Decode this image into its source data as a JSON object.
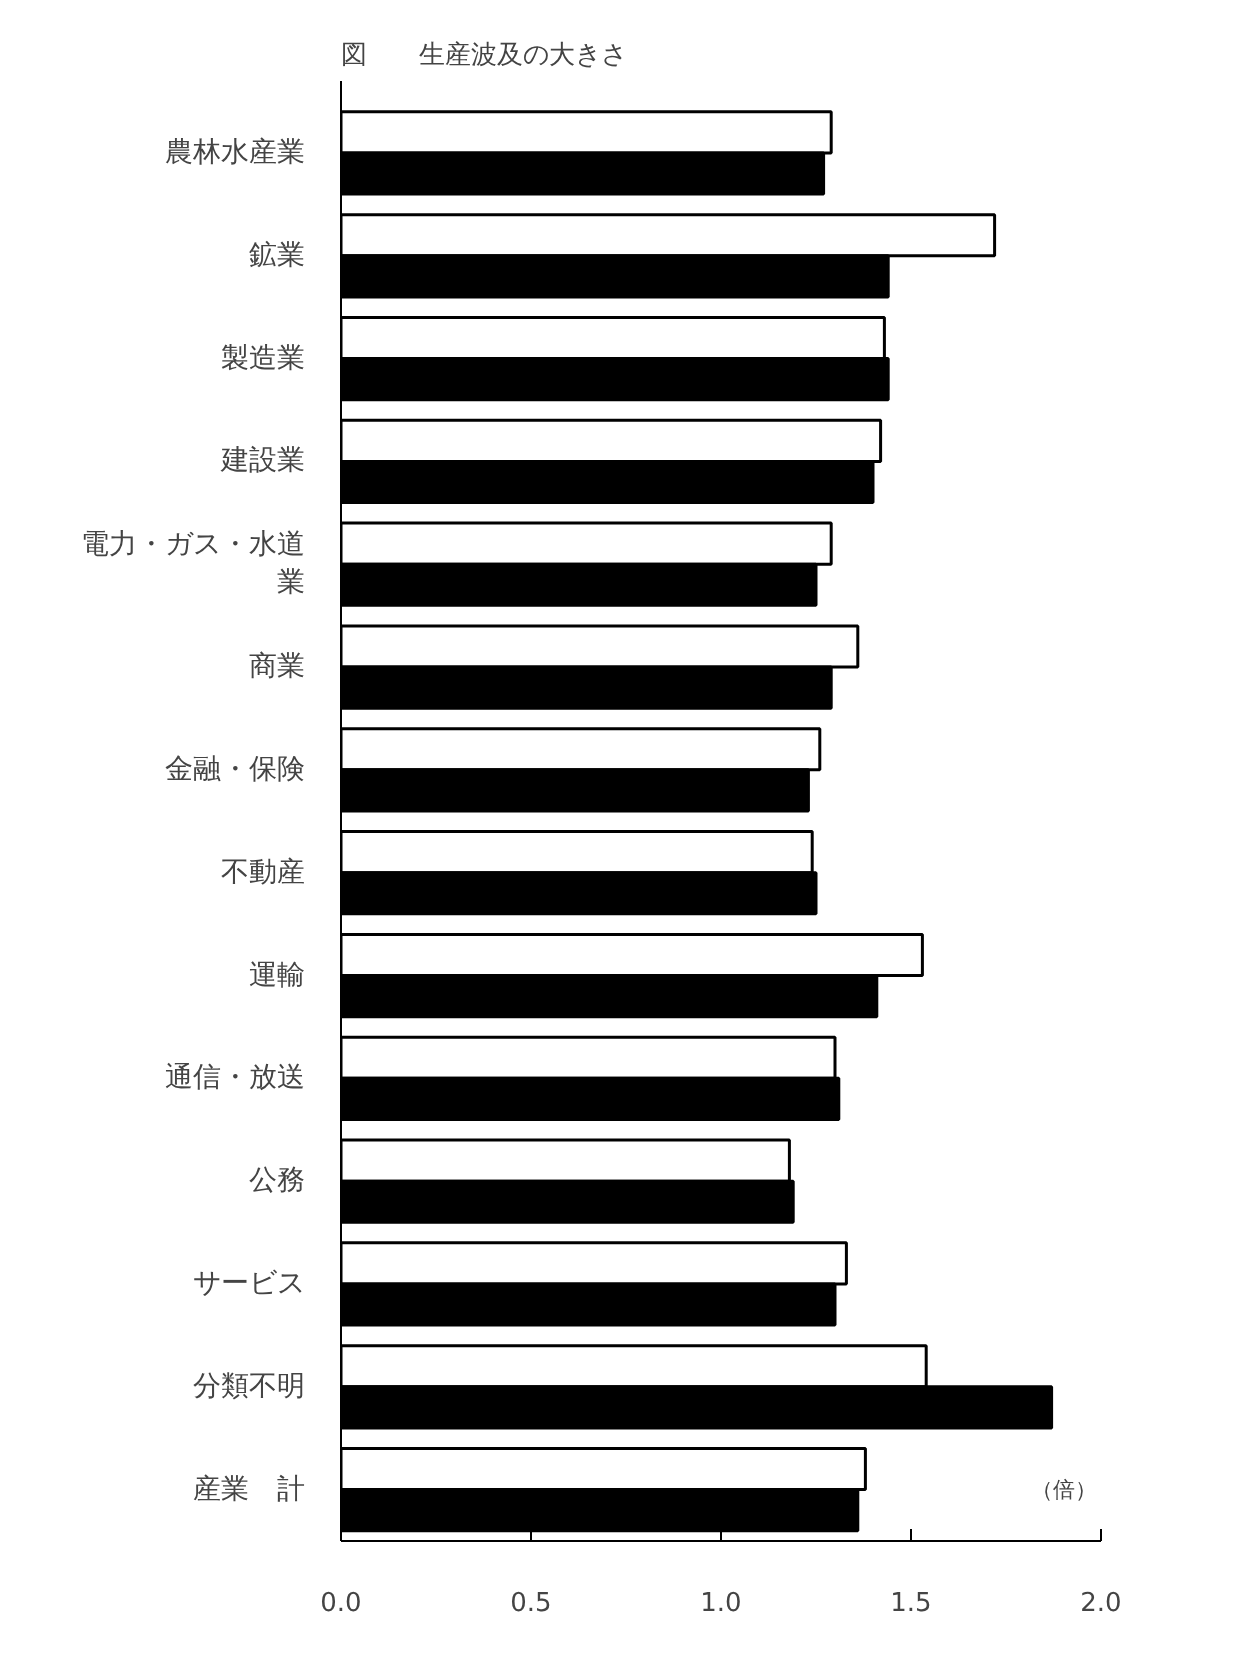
{
  "chart_data": {
    "type": "bar",
    "orientation": "horizontal",
    "title": "図　　生産波及の大きさ",
    "categories": [
      "農林水産業",
      "鉱業",
      "製造業",
      "建設業",
      "電力・ガス・水道業",
      "商業",
      "金融・保険",
      "不動産",
      "運輸",
      "通信・放送",
      "公務",
      "サービス",
      "分類不明",
      "産業　計"
    ],
    "series": [
      {
        "color": "#ffffff",
        "values": [
          1.29,
          1.72,
          1.43,
          1.42,
          1.29,
          1.36,
          1.26,
          1.24,
          1.53,
          1.3,
          1.18,
          1.33,
          1.54,
          1.38
        ]
      },
      {
        "color": "#000000",
        "values": [
          1.27,
          1.44,
          1.44,
          1.4,
          1.25,
          1.29,
          1.23,
          1.25,
          1.41,
          1.31,
          1.19,
          1.3,
          1.87,
          1.36
        ]
      }
    ],
    "xlim": [
      0,
      2
    ],
    "xticks": [
      {
        "value": 0,
        "label": "0.0"
      },
      {
        "value": 0.5,
        "label": "0.5"
      },
      {
        "value": 1,
        "label": "1.0"
      },
      {
        "value": 1.5,
        "label": "1.5"
      },
      {
        "value": 2,
        "label": "2.0"
      }
    ],
    "annotations": [
      "（倍）"
    ],
    "grid": false
  }
}
